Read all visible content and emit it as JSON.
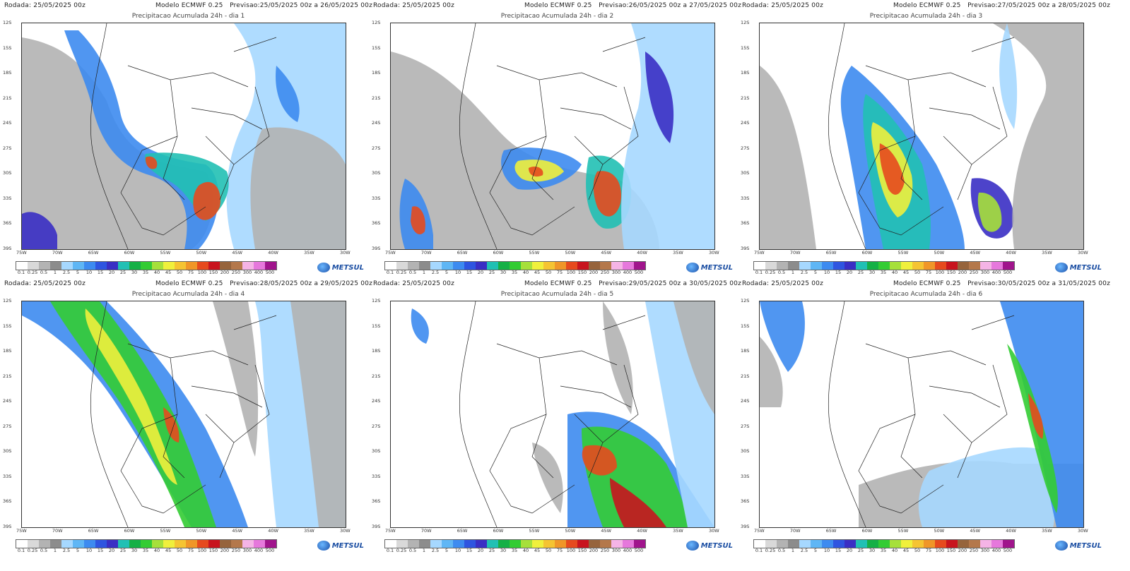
{
  "common": {
    "run": "Rodada: 25/05/2025 00z",
    "model": "Modelo ECMWF 0.25",
    "logo": "METSUL",
    "lat_labels": [
      "12S",
      "15S",
      "18S",
      "21S",
      "24S",
      "27S",
      "30S",
      "33S",
      "36S",
      "39S"
    ],
    "lon_labels": [
      "75W",
      "70W",
      "65W",
      "60W",
      "55W",
      "50W",
      "45W",
      "40W",
      "35W",
      "30W"
    ],
    "legend_labels": [
      "0.1",
      "0.25",
      "0.5",
      "1",
      "2.5",
      "5",
      "10",
      "15",
      "20",
      "25",
      "30",
      "35",
      "40",
      "45",
      "50",
      "75",
      "100",
      "150",
      "200",
      "250",
      "300",
      "400",
      "500"
    ],
    "legend_colors": [
      "#ffffff",
      "#d9d9d9",
      "#b3b3b3",
      "#8c8c8c",
      "#a6d8ff",
      "#5fb6f5",
      "#3d8bf0",
      "#2f55e0",
      "#3a2fc4",
      "#21c0b4",
      "#15b046",
      "#33cc33",
      "#a6e03a",
      "#f0f03c",
      "#f5c432",
      "#f09628",
      "#e64a1e",
      "#c8141e",
      "#96643c",
      "#b4784b",
      "#f5b4e6",
      "#e678dc",
      "#a0148c"
    ]
  },
  "panels": [
    {
      "forecast": "Previsao:25/05/2025 00z a 26/05/2025 00z",
      "title": "Precipitacao Acumulada 24h - dia 1"
    },
    {
      "forecast": "Previsao:26/05/2025 00z a 27/05/2025 00z",
      "title": "Precipitacao Acumulada 24h - dia 2"
    },
    {
      "forecast": "Previsao:27/05/2025 00z a 28/05/2025 00z",
      "title": "Precipitacao Acumulada 24h - dia 3"
    },
    {
      "forecast": "Previsao:28/05/2025 00z a 29/05/2025 00z",
      "title": "Precipitacao Acumulada 24h - dia 4"
    },
    {
      "forecast": "Previsao:29/05/2025 00z a 30/05/2025 00z",
      "title": "Precipitacao Acumulada 24h - dia 5"
    },
    {
      "forecast": "Previsao:30/05/2025 00z a 31/05/2025 00z",
      "title": "Precipitacao Acumulada 24h - dia 6"
    }
  ]
}
